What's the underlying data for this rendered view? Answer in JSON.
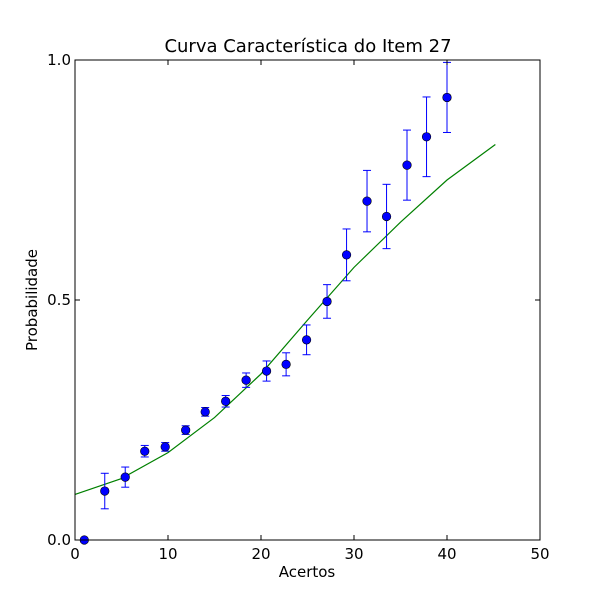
{
  "chart_data": {
    "type": "scatter",
    "title": "Curva Característica do Item 27",
    "xlabel": "Acertos",
    "ylabel": "Probabilidade",
    "xlim": [
      0,
      50
    ],
    "ylim": [
      0,
      1
    ],
    "xticks": [
      "0",
      "10",
      "20",
      "30",
      "40",
      "50"
    ],
    "yticks": [
      "0.0",
      "0.5",
      "1.0"
    ],
    "grid": false,
    "series": [
      {
        "type": "errorbar",
        "color": "#0000ff",
        "points": [
          {
            "x": 1.0,
            "y": 0.0,
            "err": 0.0
          },
          {
            "x": 3.2,
            "y": 0.102,
            "err": 0.037
          },
          {
            "x": 5.4,
            "y": 0.131,
            "err": 0.021
          },
          {
            "x": 7.5,
            "y": 0.185,
            "err": 0.012
          },
          {
            "x": 9.7,
            "y": 0.194,
            "err": 0.009
          },
          {
            "x": 11.9,
            "y": 0.229,
            "err": 0.009
          },
          {
            "x": 14.0,
            "y": 0.267,
            "err": 0.009
          },
          {
            "x": 16.2,
            "y": 0.289,
            "err": 0.012
          },
          {
            "x": 18.4,
            "y": 0.333,
            "err": 0.015
          },
          {
            "x": 20.6,
            "y": 0.352,
            "err": 0.021
          },
          {
            "x": 22.7,
            "y": 0.366,
            "err": 0.024
          },
          {
            "x": 24.9,
            "y": 0.417,
            "err": 0.031
          },
          {
            "x": 27.1,
            "y": 0.497,
            "err": 0.035
          },
          {
            "x": 29.2,
            "y": 0.594,
            "err": 0.054
          },
          {
            "x": 31.4,
            "y": 0.706,
            "err": 0.064
          },
          {
            "x": 33.5,
            "y": 0.674,
            "err": 0.067
          },
          {
            "x": 35.7,
            "y": 0.781,
            "err": 0.073
          },
          {
            "x": 37.8,
            "y": 0.84,
            "err": 0.083
          },
          {
            "x": 40.0,
            "y": 0.922,
            "err": 0.073
          }
        ]
      },
      {
        "type": "line",
        "color": "#008000",
        "points": [
          {
            "x": 0,
            "y": 0.095
          },
          {
            "x": 5,
            "y": 0.128
          },
          {
            "x": 10,
            "y": 0.182
          },
          {
            "x": 15,
            "y": 0.255
          },
          {
            "x": 20,
            "y": 0.346
          },
          {
            "x": 25,
            "y": 0.458
          },
          {
            "x": 30,
            "y": 0.568
          },
          {
            "x": 35,
            "y": 0.662
          },
          {
            "x": 40,
            "y": 0.75
          },
          {
            "x": 45.2,
            "y": 0.824
          }
        ]
      }
    ]
  }
}
